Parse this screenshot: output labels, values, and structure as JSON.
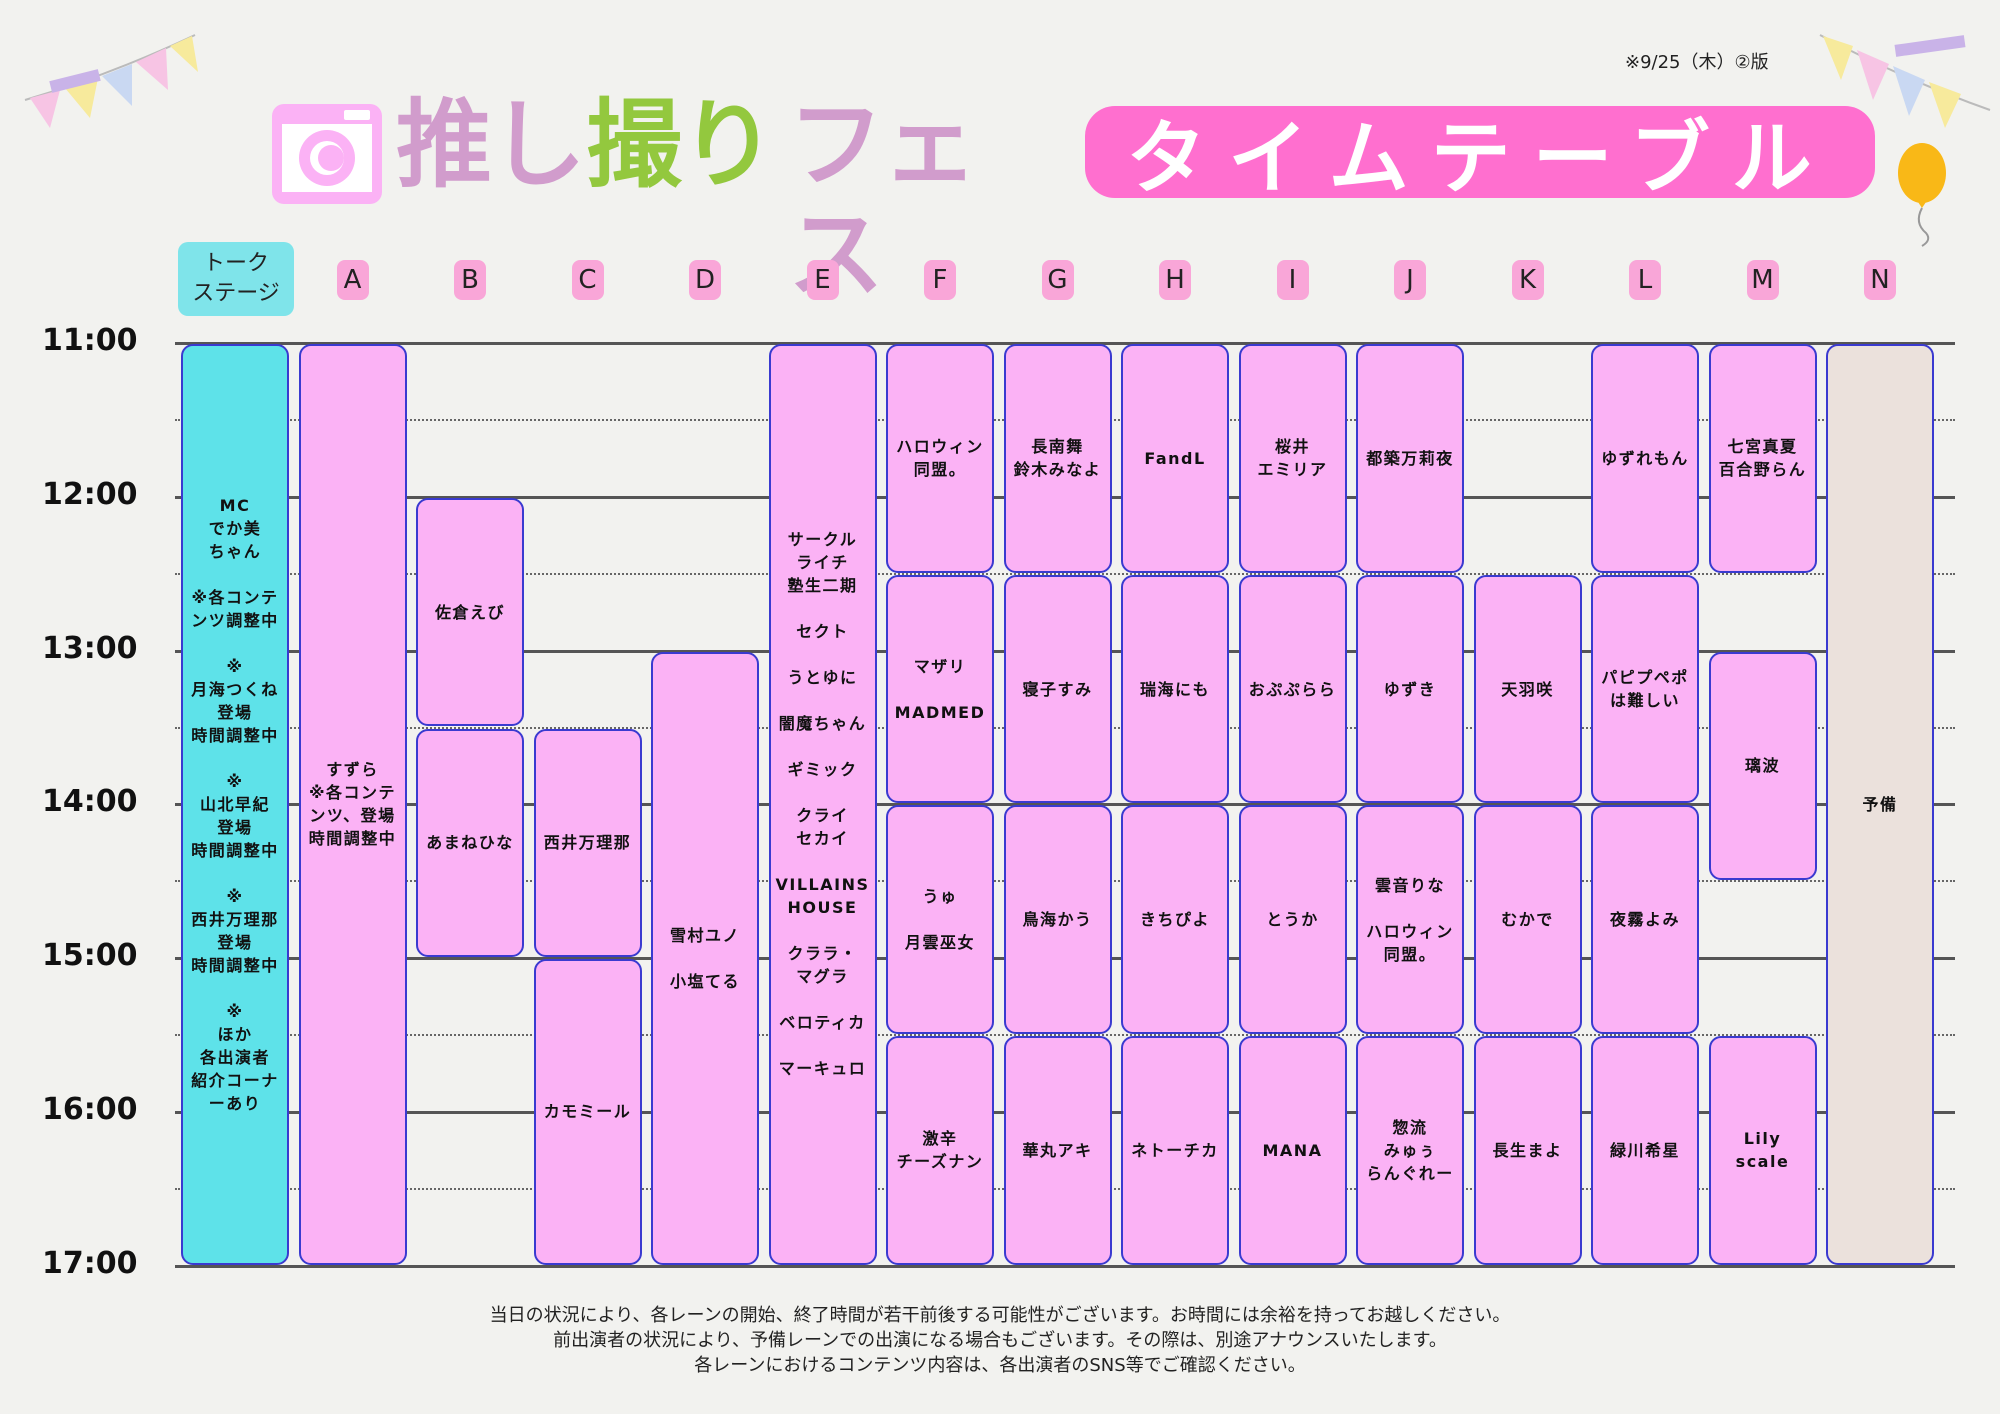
{
  "version_note": "※9/25（木）②版",
  "title": {
    "part1": "推し",
    "part2": "撮り",
    "part3": "フェス",
    "banner": "タイムテーブル"
  },
  "talk_stage_label": "トーク\nステージ",
  "lanes": [
    "A",
    "B",
    "C",
    "D",
    "E",
    "F",
    "G",
    "H",
    "I",
    "J",
    "K",
    "L",
    "M",
    "N"
  ],
  "hours": [
    "11:00",
    "12:00",
    "13:00",
    "14:00",
    "15:00",
    "16:00",
    "17:00"
  ],
  "blocks": [
    {
      "col": 0,
      "start": 11.0,
      "end": 17.0,
      "kind": "talk",
      "text": "MC\nでか美\nちゃん\n\n※各コンテ\nンツ調整中\n\n※\n月海つくね\n登場\n時間調整中\n\n※\n山北早紀\n登場\n時間調整中\n\n※\n西井万理那\n登場\n時間調整中\n\n※\nほか\n各出演者\n紹介コーナ\nーあり"
    },
    {
      "col": 1,
      "start": 11.0,
      "end": 17.0,
      "text": "すずら\n※各コンテ\nンツ、登場\n時間調整中"
    },
    {
      "col": 2,
      "start": 12.0,
      "end": 13.5,
      "text": "佐倉えび"
    },
    {
      "col": 2,
      "start": 13.5,
      "end": 15.0,
      "text": "あまねひな"
    },
    {
      "col": 3,
      "start": 13.5,
      "end": 15.0,
      "text": "西井万理那"
    },
    {
      "col": 3,
      "start": 15.0,
      "end": 17.0,
      "text": "カモミール"
    },
    {
      "col": 4,
      "start": 13.0,
      "end": 17.0,
      "text": "雪村ユノ\n\n小塩てる"
    },
    {
      "col": 5,
      "start": 11.0,
      "end": 17.0,
      "text": "サークル\nライチ\n塾生二期\n\nセクト\n\nうとゆに\n\n闇魔ちゃん\n\nギミック\n\nクライ\nセカイ\n\nVILLAINS\nHOUSE\n\nクララ・\nマグラ\n\nベロティカ\n\nマーキュロ"
    },
    {
      "col": 6,
      "start": 11.0,
      "end": 12.5,
      "text": "ハロウィン\n同盟。"
    },
    {
      "col": 6,
      "start": 12.5,
      "end": 14.0,
      "text": "マザリ\n\nMADMED"
    },
    {
      "col": 6,
      "start": 14.0,
      "end": 15.5,
      "text": "うゅ\n\n月雲巫女"
    },
    {
      "col": 6,
      "start": 15.5,
      "end": 17.0,
      "text": "激辛\nチーズナン"
    },
    {
      "col": 7,
      "start": 11.0,
      "end": 12.5,
      "text": "長南舞\n鈴木みなよ"
    },
    {
      "col": 7,
      "start": 12.5,
      "end": 14.0,
      "text": "寝子すみ"
    },
    {
      "col": 7,
      "start": 14.0,
      "end": 15.5,
      "text": "鳥海かう"
    },
    {
      "col": 7,
      "start": 15.5,
      "end": 17.0,
      "text": "華丸アキ"
    },
    {
      "col": 8,
      "start": 11.0,
      "end": 12.5,
      "text": "FandL"
    },
    {
      "col": 8,
      "start": 12.5,
      "end": 14.0,
      "text": "瑞海にも"
    },
    {
      "col": 8,
      "start": 14.0,
      "end": 15.5,
      "text": "きちぴよ"
    },
    {
      "col": 8,
      "start": 15.5,
      "end": 17.0,
      "text": "ネトーチカ"
    },
    {
      "col": 9,
      "start": 11.0,
      "end": 12.5,
      "text": "桜井\nエミリア"
    },
    {
      "col": 9,
      "start": 12.5,
      "end": 14.0,
      "text": "おぷぷらら"
    },
    {
      "col": 9,
      "start": 14.0,
      "end": 15.5,
      "text": "とうか"
    },
    {
      "col": 9,
      "start": 15.5,
      "end": 17.0,
      "text": "MANA"
    },
    {
      "col": 10,
      "start": 11.0,
      "end": 12.5,
      "text": "都築万莉夜"
    },
    {
      "col": 10,
      "start": 12.5,
      "end": 14.0,
      "text": "ゆずき"
    },
    {
      "col": 10,
      "start": 14.0,
      "end": 15.5,
      "text": "雲音りな\n\nハロウィン\n同盟。"
    },
    {
      "col": 10,
      "start": 15.5,
      "end": 17.0,
      "text": "惣流\nみゅぅ\nらんぐれー"
    },
    {
      "col": 11,
      "start": 12.5,
      "end": 14.0,
      "text": "天羽咲"
    },
    {
      "col": 11,
      "start": 14.0,
      "end": 15.5,
      "text": "むかで"
    },
    {
      "col": 11,
      "start": 15.5,
      "end": 17.0,
      "text": "長生まよ"
    },
    {
      "col": 12,
      "start": 11.0,
      "end": 12.5,
      "text": "ゆずれもん"
    },
    {
      "col": 12,
      "start": 12.5,
      "end": 14.0,
      "text": "パピプペポ\nは難しい"
    },
    {
      "col": 12,
      "start": 14.0,
      "end": 15.5,
      "text": "夜霧よみ"
    },
    {
      "col": 12,
      "start": 15.5,
      "end": 17.0,
      "text": "緑川希星"
    },
    {
      "col": 13,
      "start": 11.0,
      "end": 12.5,
      "text": "七宮真夏\n百合野らん"
    },
    {
      "col": 13,
      "start": 13.0,
      "end": 14.5,
      "text": "璃波"
    },
    {
      "col": 13,
      "start": 15.5,
      "end": 17.0,
      "text": "Lily scale"
    },
    {
      "col": 14,
      "start": 11.0,
      "end": 17.0,
      "kind": "reserve",
      "text": "予備"
    }
  ],
  "notes": [
    "当日の状況により、各レーンの開始、終了時間が若干前後する可能性がございます。お時間には余裕を持ってお越しください。",
    "前出演者の状況により、予備レーンでの出演になる場合もございます。その際は、別途アナウンスいたします。",
    "各レーンにおけるコンテンツ内容は、各出演者のSNS等でご確認ください。"
  ],
  "colors": {
    "block": "#fbb2f5",
    "talk": "#5ee2e9",
    "reserve": "#ebe1dc",
    "banner": "#ff6fcf",
    "border": "#3a3ad0"
  }
}
